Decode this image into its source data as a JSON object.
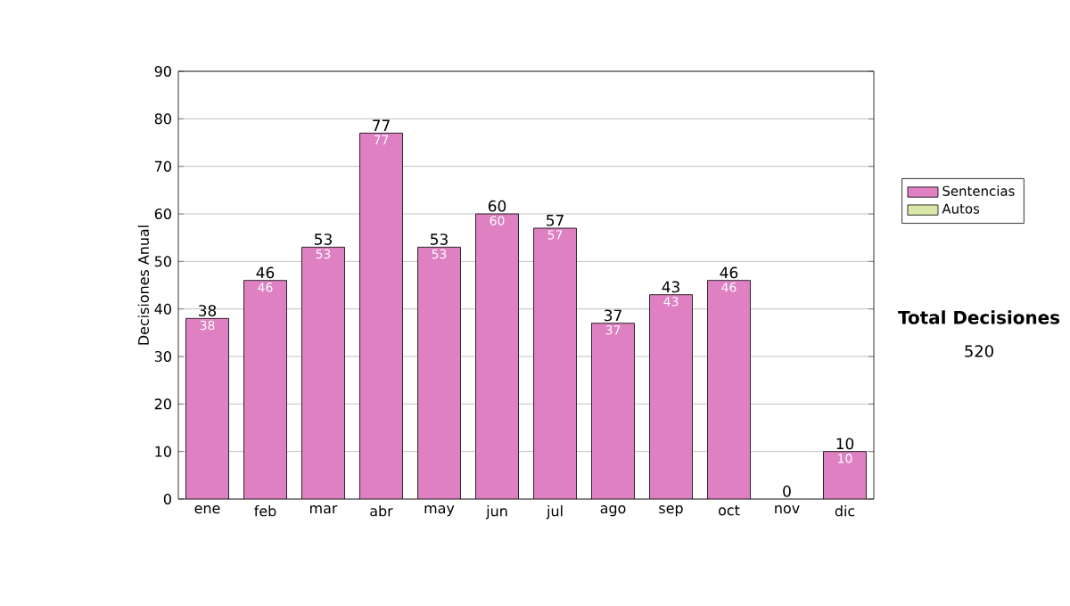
{
  "chart_data": {
    "type": "bar",
    "stacked": true,
    "categories": [
      "ene",
      "feb",
      "mar",
      "abr",
      "may",
      "jun",
      "jul",
      "ago",
      "sep",
      "oct",
      "nov",
      "dic"
    ],
    "series": [
      {
        "name": "Sentencias",
        "color": "#de80c1",
        "values": [
          38,
          46,
          53,
          77,
          53,
          60,
          57,
          37,
          43,
          46,
          null,
          10
        ],
        "value_labels": [
          "38",
          "46",
          "53",
          "77",
          "53",
          "60",
          "57",
          "37",
          "43",
          "46",
          null,
          "10"
        ]
      },
      {
        "name": "Autos",
        "color": "#d9e8a8",
        "values": [
          null,
          null,
          null,
          null,
          null,
          null,
          null,
          null,
          null,
          null,
          null,
          null
        ]
      }
    ],
    "totals": [
      "38",
      "46",
      "53",
      "77",
      "53",
      "60",
      "57",
      "37",
      "43",
      "46",
      "0",
      "10"
    ],
    "ylabel": "Decisiones Anual",
    "ylim": [
      0,
      90
    ],
    "yticks": [
      0,
      10,
      20,
      30,
      40,
      50,
      60,
      70,
      80,
      90
    ],
    "grid": "y",
    "legend": "right",
    "annotations": [
      "Total Decisiones",
      "520"
    ]
  }
}
